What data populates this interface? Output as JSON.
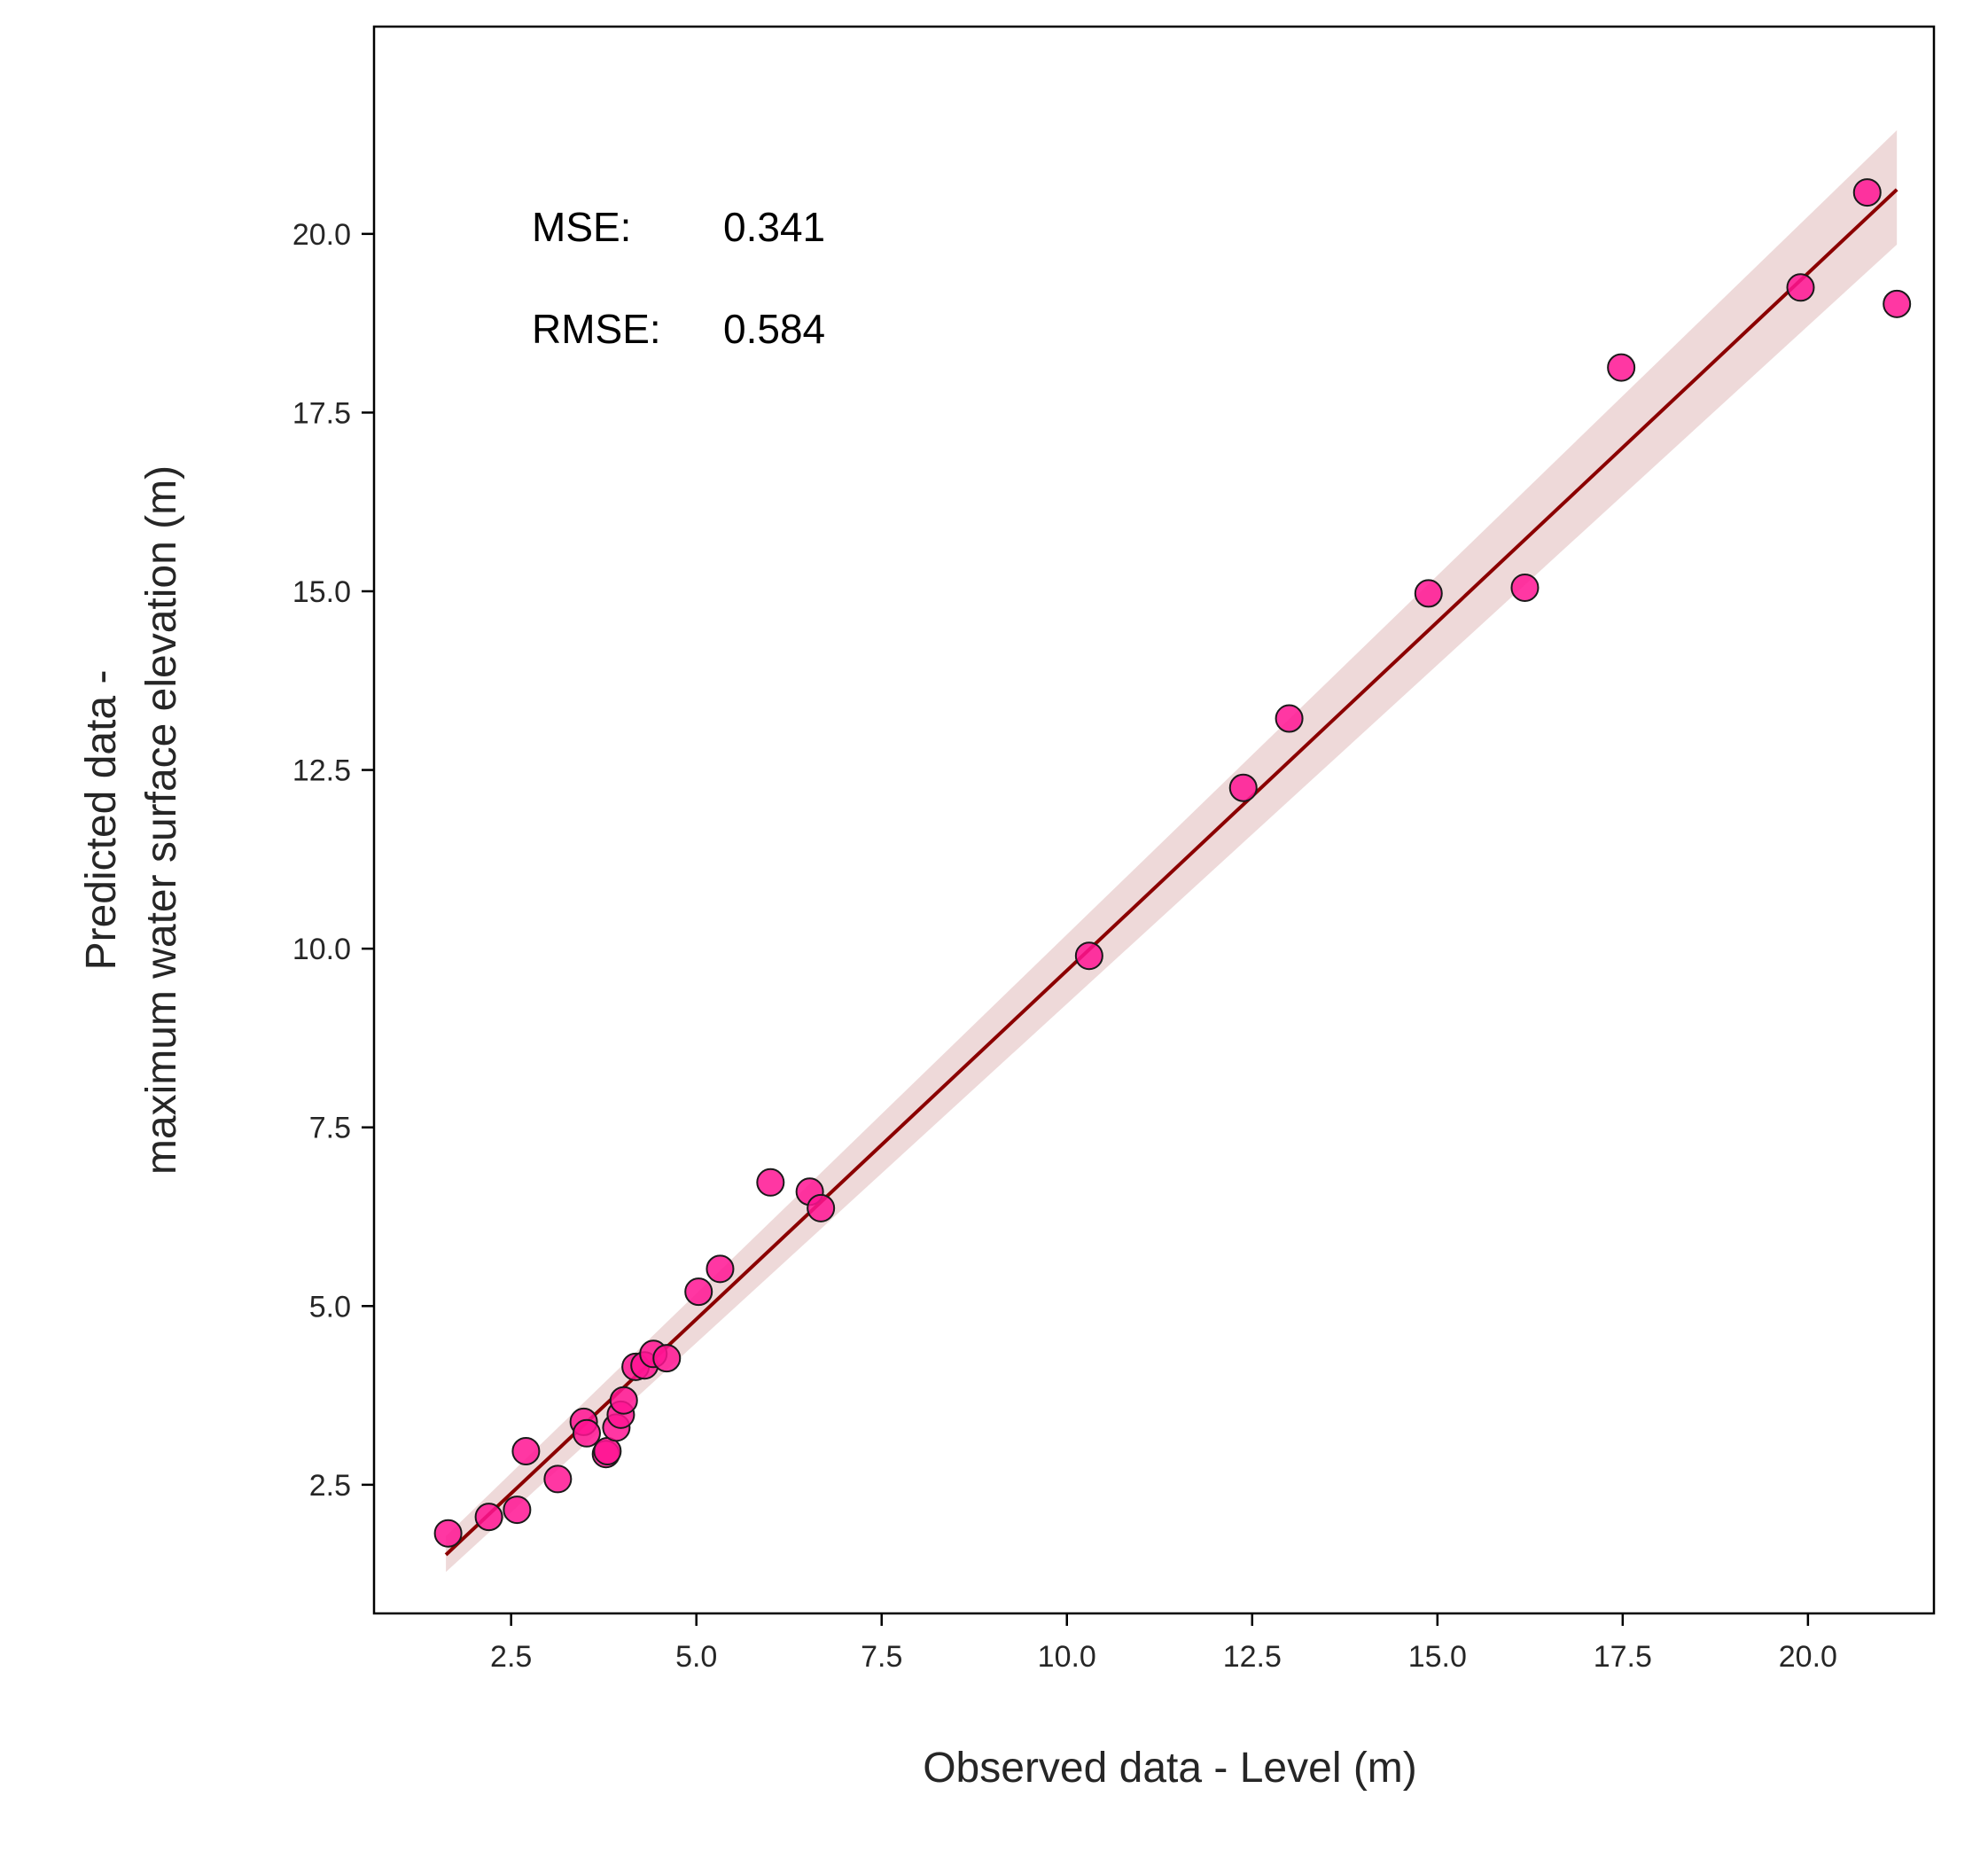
{
  "chart_data": {
    "type": "scatter",
    "title": "",
    "xlabel": "Observed data - Level (m)",
    "ylabel_lines": [
      "Predicted data -",
      "maximum water surface elevation (m)"
    ],
    "xlim": [
      0.65,
      21.7
    ],
    "ylim": [
      0.7,
      22.9
    ],
    "x_ticks": [
      2.5,
      5.0,
      7.5,
      10.0,
      12.5,
      15.0,
      17.5,
      20.0
    ],
    "y_ticks": [
      2.5,
      5.0,
      7.5,
      10.0,
      12.5,
      15.0,
      17.5,
      20.0
    ],
    "x_tick_labels": [
      "2.5",
      "5.0",
      "7.5",
      "10.0",
      "12.5",
      "15.0",
      "17.5",
      "20.0"
    ],
    "y_tick_labels": [
      "2.5",
      "5.0",
      "7.5",
      "10.0",
      "12.5",
      "15.0",
      "17.5",
      "20.0"
    ],
    "grid": false,
    "points": [
      {
        "x": 1.65,
        "y": 1.82
      },
      {
        "x": 2.2,
        "y": 2.05
      },
      {
        "x": 2.58,
        "y": 2.15
      },
      {
        "x": 2.7,
        "y": 2.97
      },
      {
        "x": 3.13,
        "y": 2.58
      },
      {
        "x": 3.48,
        "y": 3.38
      },
      {
        "x": 3.52,
        "y": 3.22
      },
      {
        "x": 3.78,
        "y": 2.93
      },
      {
        "x": 3.8,
        "y": 2.97
      },
      {
        "x": 3.92,
        "y": 3.3
      },
      {
        "x": 3.98,
        "y": 3.48
      },
      {
        "x": 4.02,
        "y": 3.68
      },
      {
        "x": 4.18,
        "y": 4.15
      },
      {
        "x": 4.3,
        "y": 4.17
      },
      {
        "x": 4.42,
        "y": 4.33
      },
      {
        "x": 4.6,
        "y": 4.27
      },
      {
        "x": 5.03,
        "y": 5.2
      },
      {
        "x": 5.32,
        "y": 5.52
      },
      {
        "x": 6.0,
        "y": 6.73
      },
      {
        "x": 6.53,
        "y": 6.6
      },
      {
        "x": 6.68,
        "y": 6.37
      },
      {
        "x": 10.3,
        "y": 9.9
      },
      {
        "x": 12.38,
        "y": 12.25
      },
      {
        "x": 13.0,
        "y": 13.22
      },
      {
        "x": 14.88,
        "y": 14.97
      },
      {
        "x": 16.18,
        "y": 15.05
      },
      {
        "x": 17.48,
        "y": 18.13
      },
      {
        "x": 19.9,
        "y": 19.25
      },
      {
        "x": 20.8,
        "y": 20.58
      },
      {
        "x": 21.2,
        "y": 19.02
      }
    ],
    "regression": {
      "x": [
        1.62,
        21.2
      ],
      "y": [
        1.52,
        20.62
      ],
      "ci_lower": [
        1.28,
        19.85
      ],
      "ci_upper": [
        1.78,
        21.45
      ]
    },
    "annotations": {
      "mse_label": "MSE:",
      "mse_value": "0.341",
      "rmse_label": "RMSE:",
      "rmse_value": "0.584"
    },
    "colors": {
      "point_fill": "#FF1493",
      "point_edge": "#1a1a1a",
      "line": "#8B0000",
      "ci_band": "#8B0000"
    }
  }
}
